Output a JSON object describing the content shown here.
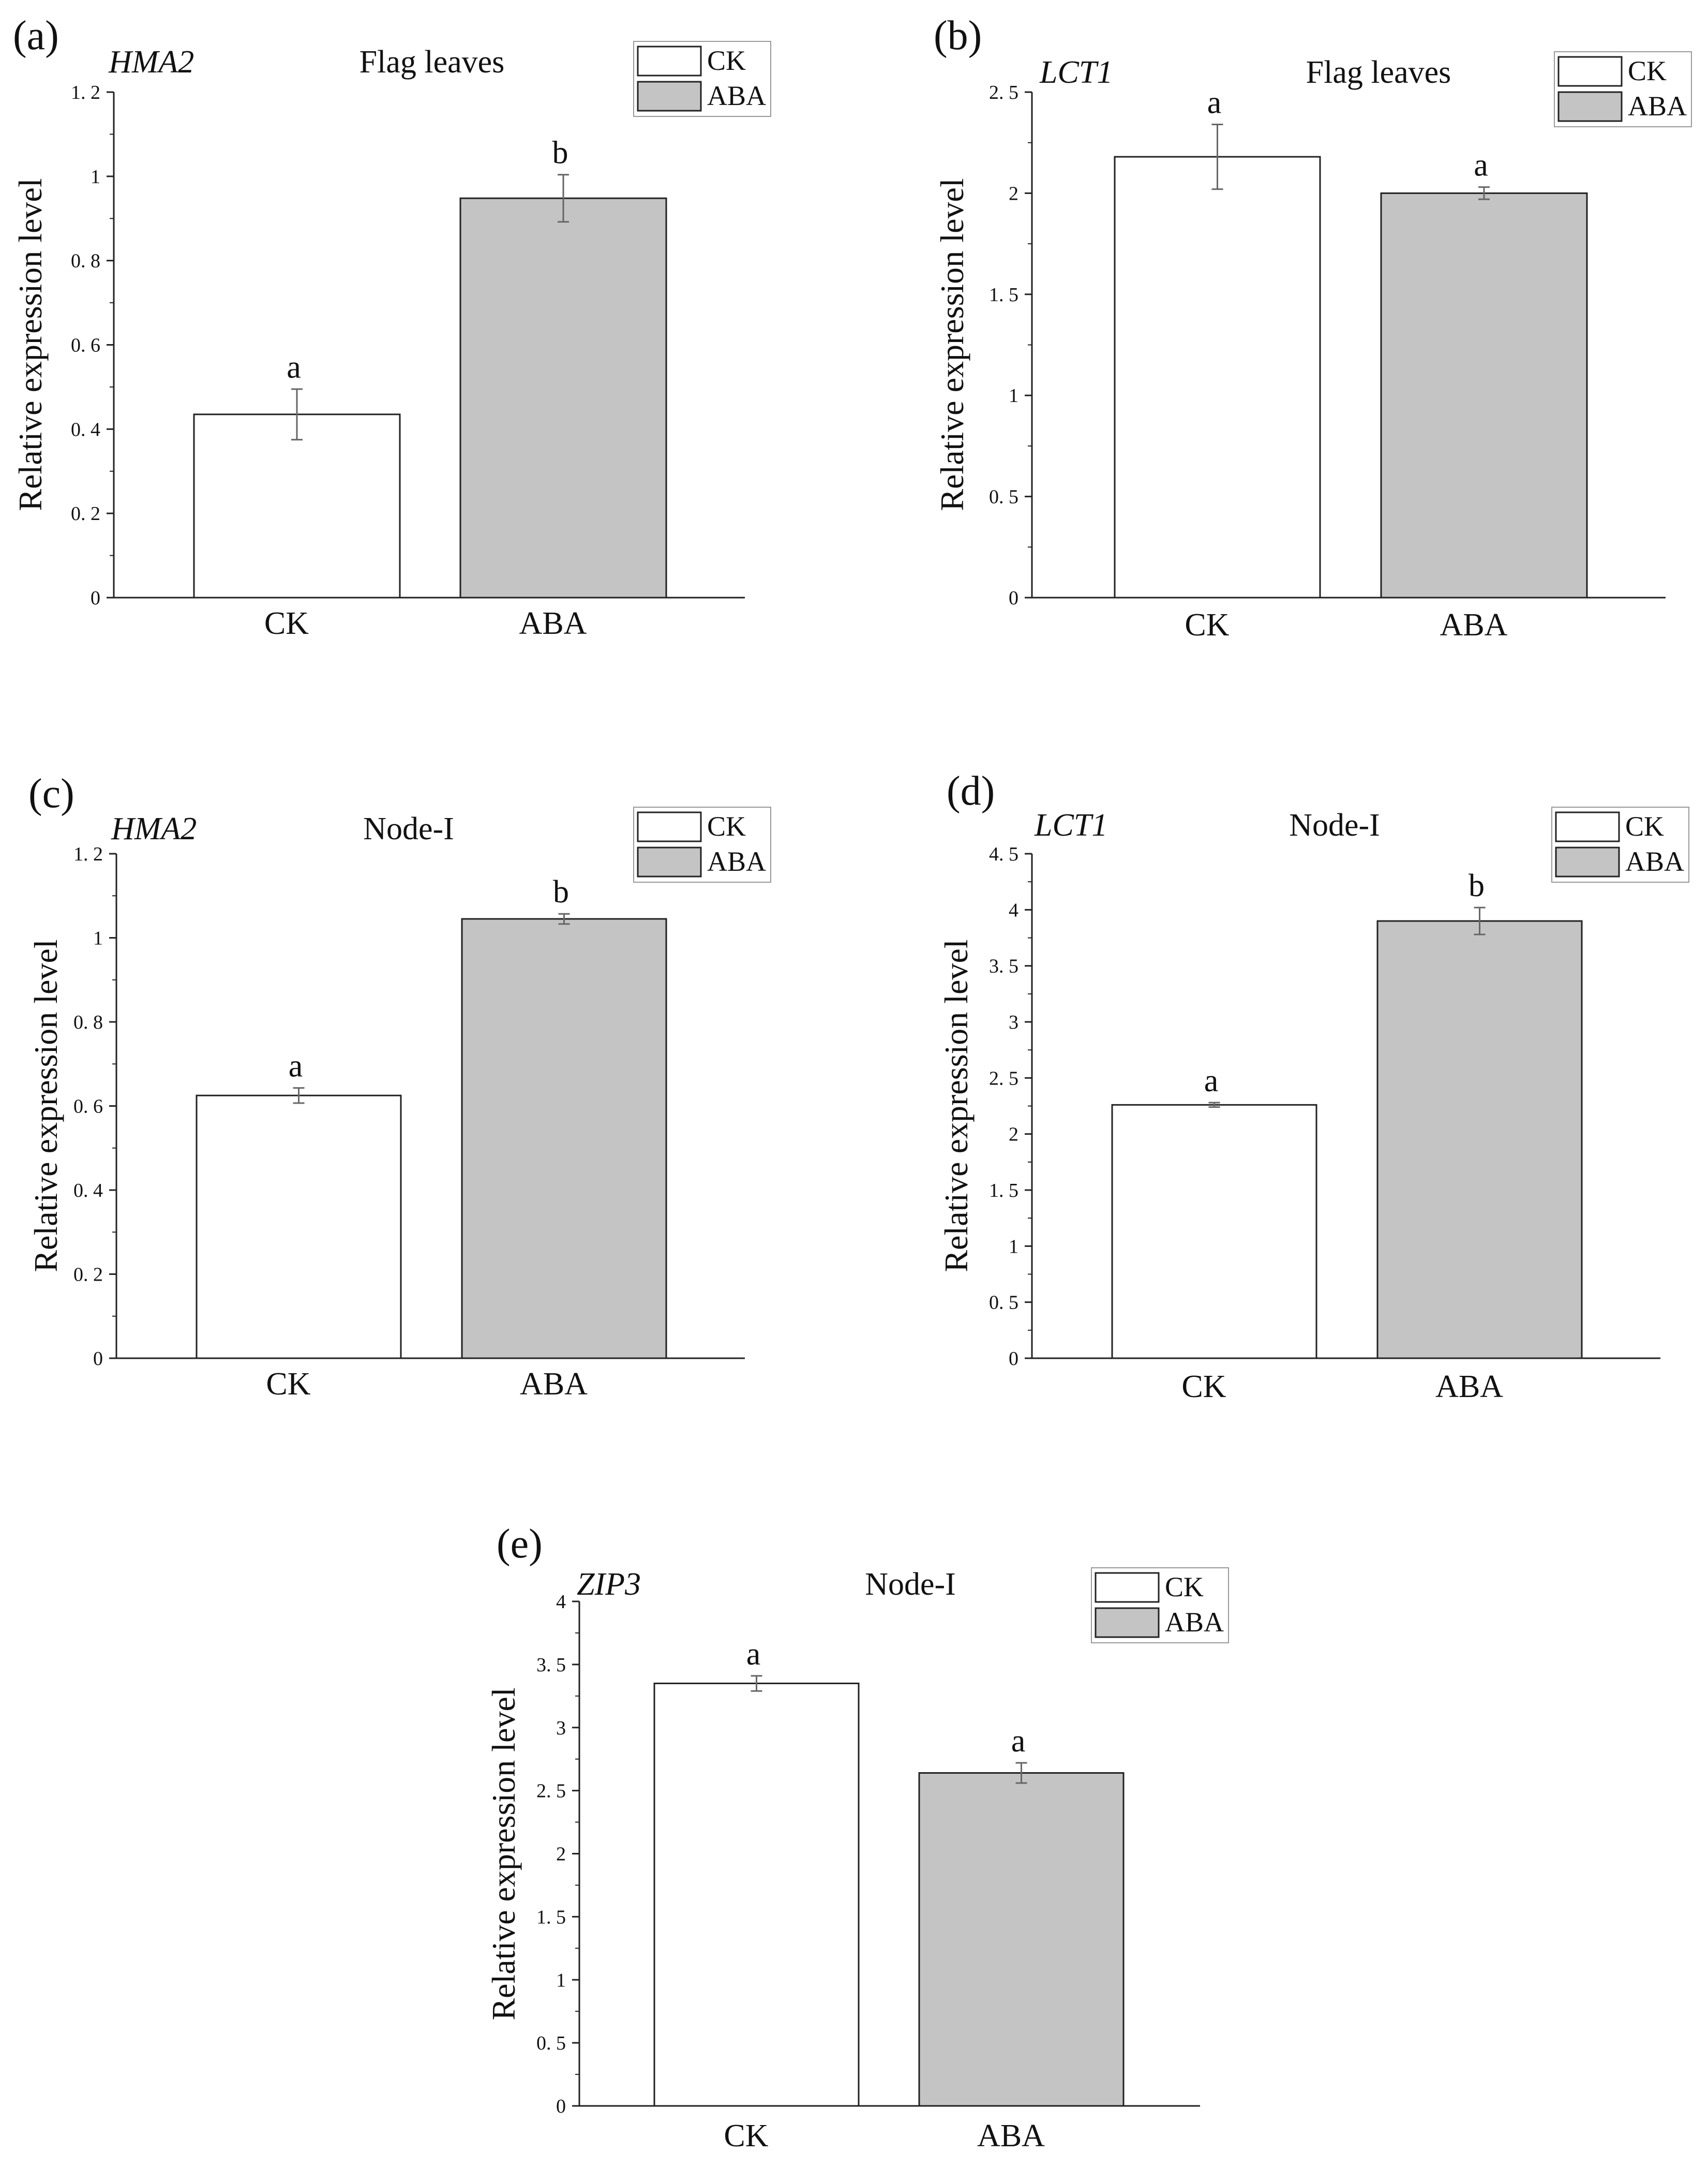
{
  "colors": {
    "ck": "#ffffff",
    "aba": "#c4c4c4",
    "stroke": "#222222",
    "error": "#666666"
  },
  "legend": [
    "CK",
    "ABA"
  ],
  "chart_data": [
    {
      "panel": "(a)",
      "gene": "HMA2",
      "title": "Flag leaves",
      "type": "bar",
      "categories": [
        "CK",
        "ABA"
      ],
      "values": [
        0.435,
        0.948
      ],
      "errors": [
        0.06,
        0.056
      ],
      "significance": [
        "a",
        "b"
      ],
      "ylabel": "Relative expression level",
      "ylim": [
        0,
        1.2
      ],
      "yticks": [
        0,
        0.2,
        0.4,
        0.6,
        0.8,
        1,
        1.2
      ],
      "yticklabels": [
        "0",
        "0. 2",
        "0. 4",
        "0. 6",
        "0. 8",
        "1",
        "1. 2"
      ]
    },
    {
      "panel": "(b)",
      "gene": "LCT1",
      "title": "Flag leaves",
      "type": "bar",
      "categories": [
        "CK",
        "ABA"
      ],
      "values": [
        2.18,
        2.0
      ],
      "errors": [
        0.16,
        0.03
      ],
      "significance": [
        "a",
        "a"
      ],
      "ylabel": "Relative expression level",
      "ylim": [
        0,
        2.5
      ],
      "yticks": [
        0,
        0.5,
        1,
        1.5,
        2,
        2.5
      ],
      "yticklabels": [
        "0",
        "0. 5",
        "1",
        "1. 5",
        "2",
        "2. 5"
      ]
    },
    {
      "panel": "(c)",
      "gene": "HMA2",
      "title": "Node-I",
      "type": "bar",
      "categories": [
        "CK",
        "ABA"
      ],
      "values": [
        0.625,
        1.045
      ],
      "errors": [
        0.018,
        0.012
      ],
      "significance": [
        "a",
        "b"
      ],
      "ylabel": "Relative expression level",
      "ylim": [
        0,
        1.2
      ],
      "yticks": [
        0,
        0.2,
        0.4,
        0.6,
        0.8,
        1,
        1.2
      ],
      "yticklabels": [
        "0",
        "0. 2",
        "0. 4",
        "0. 6",
        "0. 8",
        "1",
        "1. 2"
      ]
    },
    {
      "panel": "(d)",
      "gene": "LCT1",
      "title": "Node-I",
      "type": "bar",
      "categories": [
        "CK",
        "ABA"
      ],
      "values": [
        2.26,
        3.9
      ],
      "errors": [
        0.02,
        0.12
      ],
      "significance": [
        "a",
        "b"
      ],
      "ylabel": "Relative expression level",
      "ylim": [
        0,
        4.5
      ],
      "yticks": [
        0,
        0.5,
        1,
        1.5,
        2,
        2.5,
        3,
        3.5,
        4,
        4.5
      ],
      "yticklabels": [
        "0",
        "0. 5",
        "1",
        "1. 5",
        "2",
        "2. 5",
        "3",
        "3. 5",
        "4",
        "4. 5"
      ]
    },
    {
      "panel": "(e)",
      "gene": "ZIP3",
      "title": "Node-I",
      "type": "bar",
      "categories": [
        "CK",
        "ABA"
      ],
      "values": [
        3.35,
        2.64
      ],
      "errors": [
        0.06,
        0.08
      ],
      "significance": [
        "a",
        "a"
      ],
      "ylabel": "Relative expression level",
      "ylim": [
        0,
        4
      ],
      "yticks": [
        0,
        0.5,
        1,
        1.5,
        2,
        2.5,
        3,
        3.5,
        4
      ],
      "yticklabels": [
        "0",
        "0. 5",
        "1",
        "1. 5",
        "2",
        "2. 5",
        "3",
        "3. 5",
        "4"
      ]
    }
  ]
}
